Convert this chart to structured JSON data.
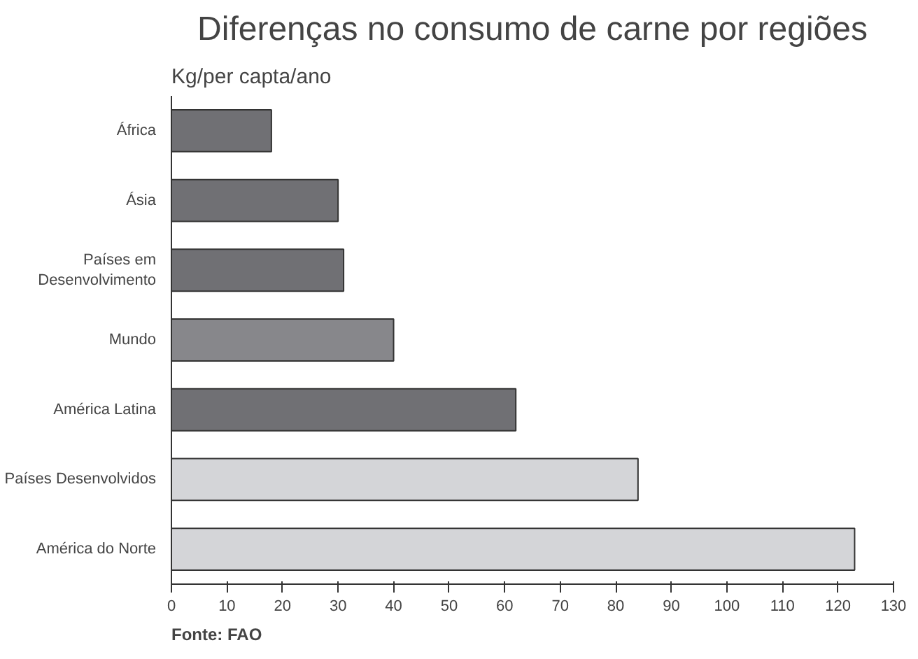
{
  "chart_data": {
    "type": "bar",
    "orientation": "horizontal",
    "title": "Diferenças no consumo de carne por regiões",
    "ylabel": "Kg/per capta/ano",
    "categories": [
      "África",
      "Ásia",
      "Países em\nDesenvolvimento",
      "Mundo",
      "América Latina",
      "Países Desenvolvidos",
      "América do Norte"
    ],
    "values": [
      18,
      30,
      31,
      40,
      62,
      84,
      123
    ],
    "colors": [
      "#707074",
      "#707074",
      "#707074",
      "#87878b",
      "#707074",
      "#d4d5d8",
      "#d4d5d8"
    ],
    "xlim": [
      0,
      130
    ],
    "xticks": [
      0,
      10,
      20,
      30,
      40,
      50,
      60,
      70,
      80,
      90,
      100,
      110,
      120,
      130
    ],
    "grid": false,
    "annotations": [
      "Fonte: FAO"
    ]
  }
}
